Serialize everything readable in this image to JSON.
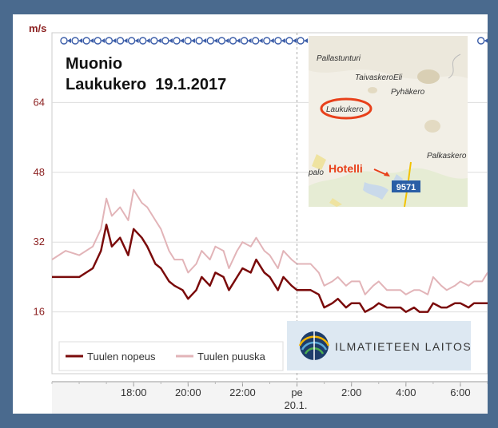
{
  "chart_data": {
    "type": "line",
    "title": "Muonio",
    "subtitle": "Laukukero  19.1.2017",
    "ylabel": "m/s",
    "ylim": [
      0,
      80
    ],
    "yticks": [
      16,
      32,
      48,
      64
    ],
    "xlim": [
      15,
      31
    ],
    "xticks": [
      {
        "value": 18,
        "label": "18:00"
      },
      {
        "value": 20,
        "label": "20:00"
      },
      {
        "value": 22,
        "label": "22:00"
      },
      {
        "value": 24,
        "label": "pe"
      },
      {
        "value": 26,
        "label": "2:00"
      },
      {
        "value": 28,
        "label": "4:00"
      },
      {
        "value": 30,
        "label": "6:00"
      }
    ],
    "date_label": "20.1.",
    "grid": true,
    "legend": "bottom-left",
    "colors": {
      "nopeus": "#7a0a0a",
      "puuska": "#e2b4b8",
      "ytick": "#8b1f1f"
    },
    "series": [
      {
        "name": "Tuulen nopeus",
        "x": [
          15.0,
          15.5,
          16.0,
          16.5,
          16.8,
          17.0,
          17.2,
          17.5,
          17.8,
          18.0,
          18.3,
          18.5,
          18.8,
          19.0,
          19.3,
          19.5,
          19.8,
          20.0,
          20.3,
          20.5,
          20.8,
          21.0,
          21.3,
          21.5,
          21.8,
          22.0,
          22.3,
          22.5,
          22.8,
          23.0,
          23.3,
          23.5,
          23.8,
          24.0,
          24.3,
          24.5,
          24.8,
          25.0,
          25.3,
          25.5,
          25.8,
          26.0,
          26.3,
          26.5,
          26.8,
          27.0,
          27.3,
          27.5,
          27.8,
          28.0,
          28.3,
          28.5,
          28.8,
          29.0,
          29.3,
          29.5,
          29.8,
          30.0,
          30.3,
          30.5,
          30.8,
          31.0
        ],
        "values": [
          24,
          24,
          24,
          26,
          30,
          36,
          31,
          33,
          29,
          35,
          33,
          31,
          27,
          26,
          23,
          22,
          21,
          19,
          21,
          24,
          22,
          25,
          24,
          21,
          24,
          26,
          25,
          28,
          25,
          24,
          21,
          24,
          22,
          21,
          21,
          21,
          20,
          17,
          18,
          19,
          17,
          18,
          18,
          16,
          17,
          18,
          17,
          17,
          17,
          16,
          17,
          16,
          16,
          18,
          17,
          17,
          18,
          18,
          17,
          18,
          18,
          18
        ]
      },
      {
        "name": "Tuulen puuska",
        "x": [
          15.0,
          15.5,
          16.0,
          16.5,
          16.8,
          17.0,
          17.2,
          17.5,
          17.8,
          18.0,
          18.3,
          18.5,
          18.8,
          19.0,
          19.3,
          19.5,
          19.8,
          20.0,
          20.3,
          20.5,
          20.8,
          21.0,
          21.3,
          21.5,
          21.8,
          22.0,
          22.3,
          22.5,
          22.8,
          23.0,
          23.3,
          23.5,
          23.8,
          24.0,
          24.3,
          24.5,
          24.8,
          25.0,
          25.3,
          25.5,
          25.8,
          26.0,
          26.3,
          26.5,
          26.8,
          27.0,
          27.3,
          27.5,
          27.8,
          28.0,
          28.3,
          28.5,
          28.8,
          29.0,
          29.3,
          29.5,
          29.8,
          30.0,
          30.3,
          30.5,
          30.8,
          31.0
        ],
        "values": [
          28,
          30,
          29,
          31,
          35,
          42,
          38,
          40,
          37,
          44,
          41,
          40,
          37,
          35,
          30,
          28,
          28,
          25,
          27,
          30,
          28,
          31,
          30,
          26,
          30,
          32,
          31,
          33,
          30,
          29,
          26,
          30,
          28,
          27,
          27,
          27,
          25,
          22,
          23,
          24,
          22,
          23,
          23,
          20,
          22,
          23,
          21,
          21,
          21,
          20,
          21,
          21,
          20,
          24,
          22,
          21,
          22,
          23,
          22,
          23,
          23,
          25
        ]
      }
    ]
  },
  "map": {
    "labels": {
      "pallastunturi": "Pallastunturi",
      "taivaskero": "TaivaskeroEli",
      "pyhakero": "Pyhäkero",
      "laukukero": "Laukukero",
      "palkaskero": "Palkaskero",
      "palo": "palo"
    },
    "hotel_label": "Hotelli",
    "road_number": "9571"
  },
  "logo": {
    "text": "ILMATIETEEN LAITOS"
  }
}
